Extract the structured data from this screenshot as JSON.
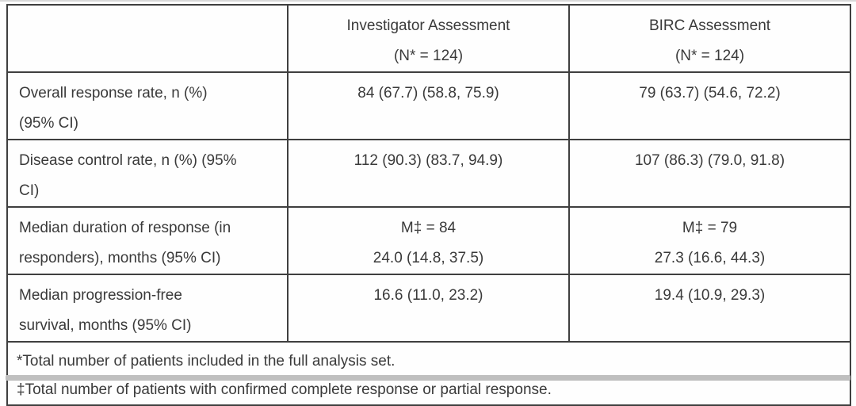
{
  "table": {
    "header": {
      "row_label_column": "",
      "investigator": {
        "line1": "Investigator Assessment",
        "line2": "(N* = 124)"
      },
      "birc": {
        "line1": "BIRC Assessment",
        "line2": "(N* = 124)"
      }
    },
    "rows": [
      {
        "label_lines": [
          "Overall response rate, n (%)",
          "(95% CI)"
        ],
        "investigator_lines": [
          "84 (67.7) (58.8, 75.9)"
        ],
        "birc_lines": [
          "79 (63.7) (54.6, 72.2)"
        ]
      },
      {
        "label_lines": [
          "Disease control rate, n (%) (95%",
          "CI)"
        ],
        "investigator_lines": [
          "112 (90.3) (83.7, 94.9)"
        ],
        "birc_lines": [
          "107 (86.3) (79.0, 91.8)"
        ]
      },
      {
        "label_lines": [
          "Median duration of response (in",
          "responders), months (95% CI)"
        ],
        "investigator_lines": [
          "M‡ = 84",
          "24.0 (14.8, 37.5)"
        ],
        "birc_lines": [
          "M‡ = 79",
          "27.3 (16.6, 44.3)"
        ]
      },
      {
        "label_lines": [
          "Median progression-free",
          "survival, months (95% CI)"
        ],
        "investigator_lines": [
          "16.6 (11.0, 23.2)"
        ],
        "birc_lines": [
          "19.4 (10.9, 29.3)"
        ]
      }
    ],
    "footnotes": [
      "*Total number of patients included in the full analysis set.",
      "‡Total number of patients with confirmed complete response or partial response."
    ]
  },
  "colors": {
    "border": "#3f3f3f",
    "text": "#3a3a3a",
    "background": "#fefefe"
  }
}
